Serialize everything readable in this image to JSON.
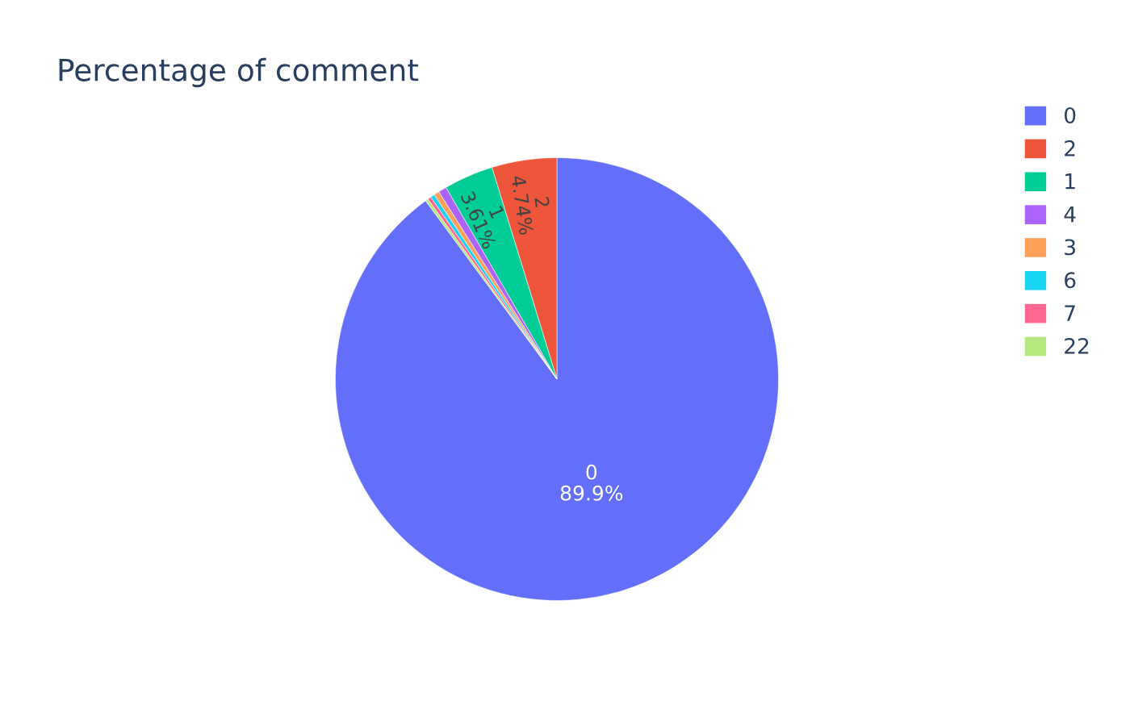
{
  "chart_data": {
    "type": "pie",
    "title": "Percentage of comment",
    "categories": [
      "0",
      "2",
      "1",
      "4",
      "3",
      "6",
      "7",
      "22"
    ],
    "values": [
      89.9,
      4.74,
      3.61,
      0.6,
      0.4,
      0.3,
      0.25,
      0.2
    ],
    "value_labels": [
      "89.9%",
      "4.74%",
      "3.61%",
      null,
      null,
      null,
      null,
      null
    ],
    "colors": [
      "#636efa",
      "#ef553b",
      "#00cc96",
      "#ab63fa",
      "#ffa15a",
      "#19d3f3",
      "#ff6692",
      "#b6e880"
    ],
    "legend": "right"
  }
}
